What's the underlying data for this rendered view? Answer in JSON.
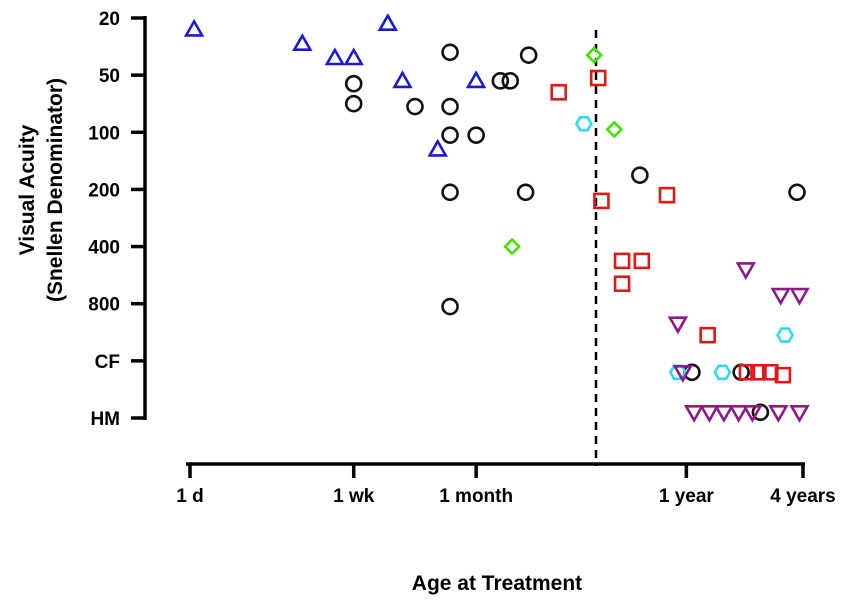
{
  "chart_data": {
    "type": "scatter",
    "title": "",
    "xlabel": "Age at Treatment",
    "ylabel_line1": "Visual Acuity",
    "ylabel_line2": "(Snellen Denominator)",
    "x_scale": "log",
    "x_unit": "days",
    "xlim": [
      1,
      1460
    ],
    "x_ticks": [
      {
        "label": "1 d",
        "value": 1
      },
      {
        "label": "1 wk",
        "value": 7
      },
      {
        "label": "1 month",
        "value": 30
      },
      {
        "label": "1 year",
        "value": 365
      },
      {
        "label": "4 years",
        "value": 1460
      }
    ],
    "y_ticks": [
      {
        "label": "20",
        "level": 0
      },
      {
        "label": "50",
        "level": 1
      },
      {
        "label": "100",
        "level": 2
      },
      {
        "label": "200",
        "level": 3
      },
      {
        "label": "400",
        "level": 4
      },
      {
        "label": "800",
        "level": 5
      },
      {
        "label": "CF",
        "level": 6
      },
      {
        "label": "HM",
        "level": 7
      }
    ],
    "y_scale": "ordinal acuity levels (20 at top, HM at bottom)",
    "reference_line": {
      "x": 130,
      "style": "dashed"
    },
    "colors": {
      "blue": "#1a1ad6",
      "black": "#111111",
      "green": "#44e000",
      "cyan": "#33d9f0",
      "red": "#e01818",
      "purple": "#8a1a8a"
    },
    "series": [
      {
        "name": "blue-triangles",
        "marker": "triangle-up",
        "color": "#1a1ad6",
        "points": [
          {
            "x": 1.05,
            "y": 0.2
          },
          {
            "x": 3.8,
            "y": 0.45
          },
          {
            "x": 5.6,
            "y": 0.7
          },
          {
            "x": 7.0,
            "y": 0.7
          },
          {
            "x": 10.5,
            "y": 0.1
          },
          {
            "x": 12.5,
            "y": 1.1
          },
          {
            "x": 19.0,
            "y": 2.3
          },
          {
            "x": 30.0,
            "y": 1.1
          }
        ]
      },
      {
        "name": "black-circles",
        "marker": "circle",
        "color": "#111111",
        "points": [
          {
            "x": 7.0,
            "y": 1.15
          },
          {
            "x": 7.0,
            "y": 1.5
          },
          {
            "x": 14.5,
            "y": 1.55
          },
          {
            "x": 22.0,
            "y": 0.6
          },
          {
            "x": 22.0,
            "y": 1.55
          },
          {
            "x": 22.0,
            "y": 2.05
          },
          {
            "x": 22.0,
            "y": 3.05
          },
          {
            "x": 22.0,
            "y": 5.05
          },
          {
            "x": 30.0,
            "y": 2.05
          },
          {
            "x": 40.0,
            "y": 1.1
          },
          {
            "x": 45.0,
            "y": 1.1
          },
          {
            "x": 54.0,
            "y": 3.05
          },
          {
            "x": 56.0,
            "y": 0.65
          },
          {
            "x": 210.0,
            "y": 2.75
          },
          {
            "x": 390.0,
            "y": 6.2
          },
          {
            "x": 700.0,
            "y": 6.2
          },
          {
            "x": 880.0,
            "y": 6.9
          },
          {
            "x": 1360.0,
            "y": 3.05
          }
        ]
      },
      {
        "name": "green-diamonds",
        "marker": "diamond",
        "color": "#44e000",
        "points": [
          {
            "x": 46.0,
            "y": 4.0
          },
          {
            "x": 122.0,
            "y": 0.65
          },
          {
            "x": 155.0,
            "y": 1.95
          }
        ]
      },
      {
        "name": "cyan-hexagons",
        "marker": "hexagon",
        "color": "#33d9f0",
        "points": [
          {
            "x": 108.0,
            "y": 1.85
          },
          {
            "x": 330.0,
            "y": 6.2
          },
          {
            "x": 560.0,
            "y": 6.2
          },
          {
            "x": 1180.0,
            "y": 5.55
          }
        ]
      },
      {
        "name": "red-squares",
        "marker": "square",
        "color": "#e01818",
        "points": [
          {
            "x": 80.0,
            "y": 1.3
          },
          {
            "x": 128.0,
            "y": 1.05
          },
          {
            "x": 133.0,
            "y": 3.2
          },
          {
            "x": 170.0,
            "y": 4.25
          },
          {
            "x": 170.0,
            "y": 4.65
          },
          {
            "x": 215.0,
            "y": 4.25
          },
          {
            "x": 290.0,
            "y": 3.1
          },
          {
            "x": 470.0,
            "y": 5.55
          },
          {
            "x": 750.0,
            "y": 6.2
          },
          {
            "x": 860.0,
            "y": 6.2
          },
          {
            "x": 990.0,
            "y": 6.2
          },
          {
            "x": 1150.0,
            "y": 6.25
          }
        ]
      },
      {
        "name": "purple-triangles",
        "marker": "triangle-down",
        "color": "#8a1a8a",
        "points": [
          {
            "x": 330.0,
            "y": 5.35
          },
          {
            "x": 350.0,
            "y": 6.2
          },
          {
            "x": 400.0,
            "y": 6.9
          },
          {
            "x": 480.0,
            "y": 6.9
          },
          {
            "x": 570.0,
            "y": 6.9
          },
          {
            "x": 680.0,
            "y": 6.9
          },
          {
            "x": 740.0,
            "y": 4.4
          },
          {
            "x": 800.0,
            "y": 6.9
          },
          {
            "x": 1090.0,
            "y": 6.9
          },
          {
            "x": 1120.0,
            "y": 4.85
          },
          {
            "x": 1400.0,
            "y": 4.85
          },
          {
            "x": 1400.0,
            "y": 6.9
          }
        ]
      }
    ]
  }
}
